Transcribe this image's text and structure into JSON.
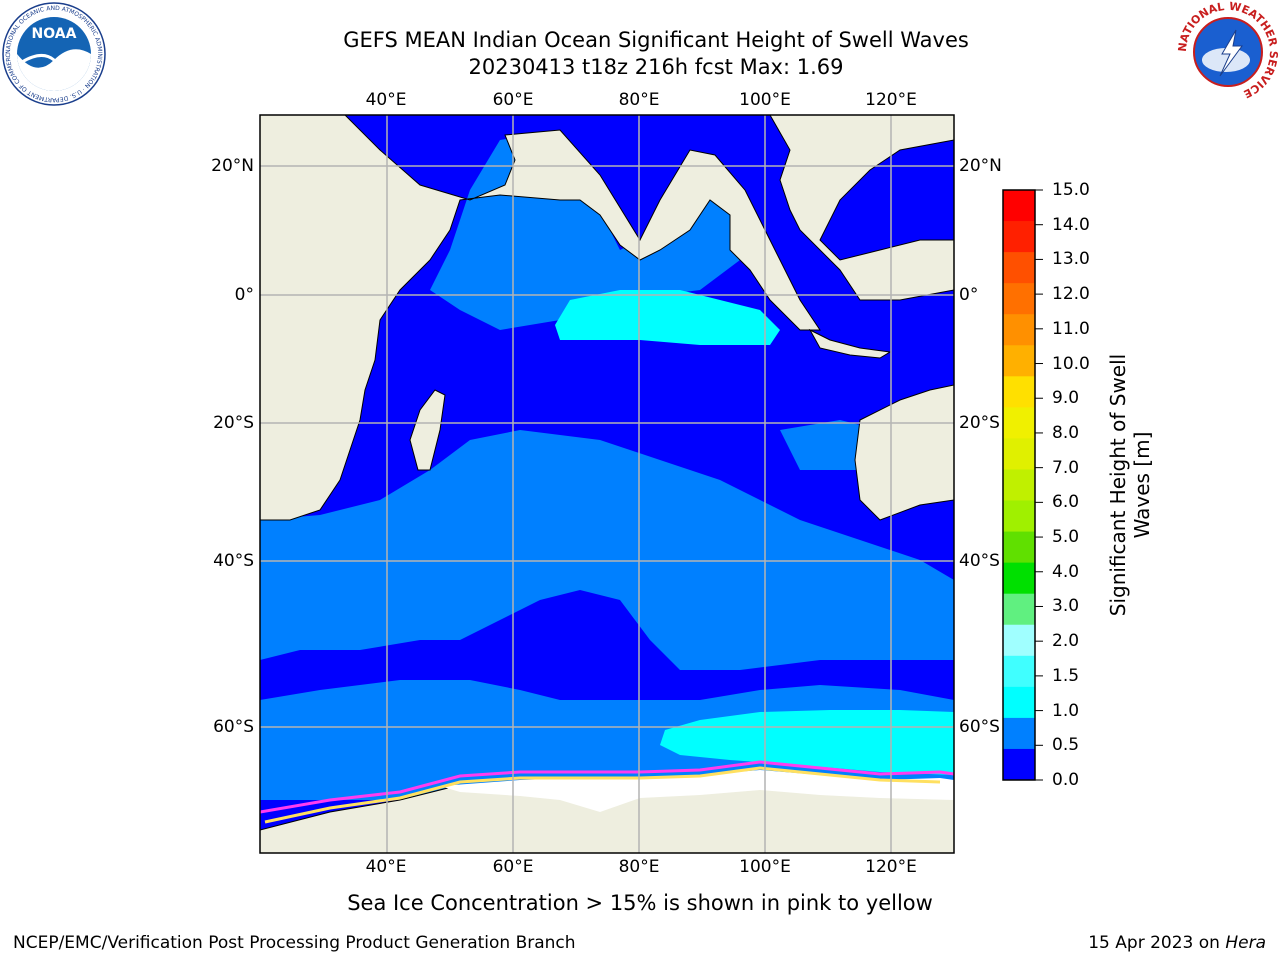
{
  "header": {
    "title_line1": "GEFS MEAN Indian Ocean Significant Height of Swell Waves",
    "title_line2": "20230413 t18z 216h fcst   Max: 1.69"
  },
  "logos": {
    "noaa": {
      "text": "NOAA",
      "ring_text": "NATIONAL OCEANIC AND ATMOSPHERIC ADMINISTRATION · U.S. DEPARTMENT OF COMMERCE"
    },
    "nws": {
      "ring_text": "NATIONAL WEATHER SERVICE"
    }
  },
  "map": {
    "lon_labels": [
      "40°E",
      "60°E",
      "80°E",
      "100°E",
      "120°E"
    ],
    "lat_labels": [
      "20°N",
      "0°",
      "20°S",
      "40°S",
      "60°S"
    ],
    "lon_range": [
      20,
      130
    ],
    "lat_range": [
      -73,
      28
    ],
    "colors": {
      "land": "#eeeedf",
      "sea_ice": "#ffffff",
      "ice_edge": [
        "#ff3cf0",
        "#ff9ad0",
        "#ffe060"
      ],
      "gridline": "#b4b4b4"
    }
  },
  "colorbar": {
    "title": "Significant Height of Swell Waves [m]",
    "ticks": [
      "15.0",
      "14.0",
      "13.0",
      "12.0",
      "11.0",
      "10.0",
      "9.0",
      "8.0",
      "7.0",
      "6.0",
      "5.0",
      "4.0",
      "3.0",
      "2.0",
      "1.5",
      "1.0",
      "0.5",
      "0.0"
    ],
    "colors": [
      "#ff0000",
      "#ff2000",
      "#ff5000",
      "#ff7000",
      "#ff9000",
      "#ffb000",
      "#ffe000",
      "#f0f000",
      "#e0f000",
      "#c0f000",
      "#a0f000",
      "#60e000",
      "#00e000",
      "#60f080",
      "#a0ffff",
      "#40ffff",
      "#00ffff",
      "#0080ff",
      "#0000ff"
    ]
  },
  "note": "Sea Ice Concentration > 15% is shown in pink to yellow",
  "footer": {
    "left": "NCEP/EMC/Verification Post Processing Product Generation Branch",
    "right_prefix": "15 Apr 2023 on ",
    "right_host": "Hera"
  }
}
